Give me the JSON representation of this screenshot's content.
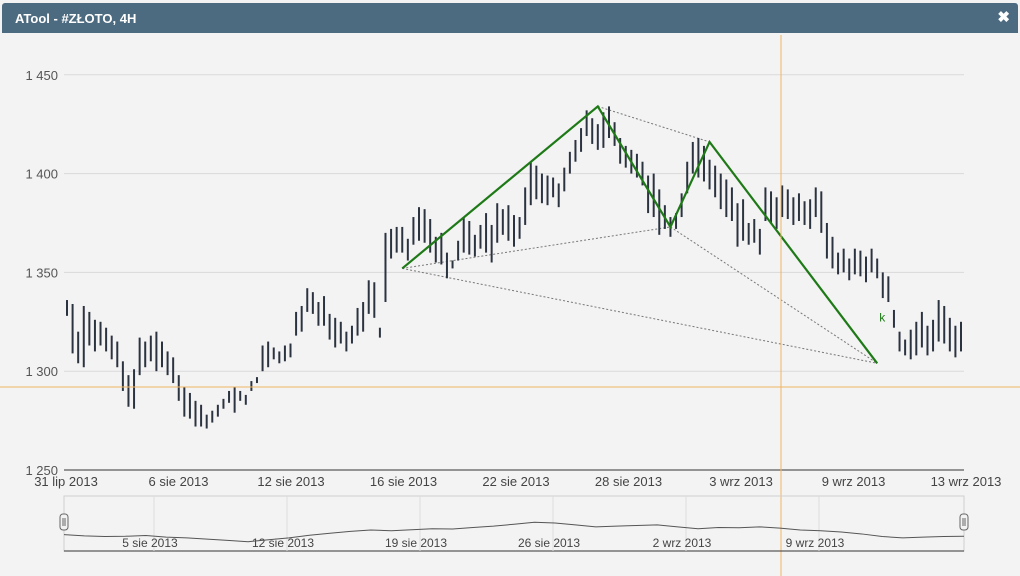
{
  "window": {
    "title": "ATool - #ZŁOTO, 4H",
    "close_icon": "close-icon"
  },
  "colors": {
    "titlebar": "#4d6b80",
    "candle": "#2b3340",
    "pattern": "#1e7a16",
    "crosshair": "#f0b560",
    "dotted": "#777777",
    "grid": "#d9d9d9"
  },
  "chart_data": {
    "type": "bar",
    "title": "",
    "xlabel": "",
    "ylabel": "",
    "ylim": [
      1250,
      1460
    ],
    "yticks": [
      "1 450",
      "1 400",
      "1 350",
      "1 300",
      "1 250"
    ],
    "ytick_values": [
      1450,
      1400,
      1350,
      1300,
      1250
    ],
    "xticks": [
      "31 lip 2013",
      "6 sie 2013",
      "12 sie 2013",
      "16 sie 2013",
      "22 sie 2013",
      "28 sie 2013",
      "3 wrz 2013",
      "9 wrz 2013",
      "13 wrz 2013"
    ],
    "ohlc_highs": [
      1336,
      1334,
      1320,
      1333,
      1330,
      1326,
      1325,
      1322,
      1318,
      1315,
      1305,
      1298,
      1301,
      1317,
      1315,
      1318,
      1320,
      1315,
      1310,
      1307,
      1298,
      1292,
      1289,
      1285,
      1283,
      1278,
      1280,
      1283,
      1286,
      1290,
      1292,
      1290,
      1288,
      1295,
      1297,
      1313,
      1315,
      1312,
      1310,
      1313,
      1314,
      1330,
      1333,
      1342,
      1340,
      1335,
      1338,
      1329,
      1327,
      1325,
      1320,
      1323,
      1332,
      1335,
      1346,
      1345,
      1322,
      1370,
      1372,
      1373,
      1373,
      1367,
      1378,
      1383,
      1382,
      1377,
      1368,
      1370,
      1360,
      1356,
      1366,
      1378,
      1376,
      1369,
      1374,
      1380,
      1374,
      1385,
      1382,
      1384,
      1379,
      1378,
      1393,
      1406,
      1404,
      1400,
      1399,
      1398,
      1395,
      1403,
      1411,
      1417,
      1423,
      1432,
      1428,
      1425,
      1431,
      1434,
      1426,
      1418,
      1414,
      1412,
      1410,
      1406,
      1399,
      1400,
      1392,
      1384,
      1378,
      1380,
      1390,
      1406,
      1416,
      1418,
      1414,
      1407,
      1404,
      1400,
      1397,
      1393,
      1385,
      1387,
      1375,
      1377,
      1372,
      1393,
      1391,
      1388,
      1394,
      1392,
      1388,
      1390,
      1386,
      1387,
      1393,
      1391,
      1375,
      1368,
      1360,
      1362,
      1357,
      1362,
      1361,
      1358,
      1362,
      1357,
      1350,
      1348,
      1331,
      1320,
      1316,
      1321,
      1325,
      1330,
      1323,
      1326,
      1336,
      1333,
      1327,
      1323,
      1325
    ],
    "ohlc_lows": [
      1328,
      1309,
      1304,
      1302,
      1313,
      1310,
      1313,
      1310,
      1306,
      1302,
      1290,
      1282,
      1281,
      1298,
      1302,
      1305,
      1300,
      1302,
      1298,
      1294,
      1285,
      1277,
      1276,
      1272,
      1272,
      1271,
      1274,
      1277,
      1281,
      1284,
      1279,
      1285,
      1283,
      1290,
      1294,
      1300,
      1302,
      1306,
      1304,
      1305,
      1307,
      1318,
      1320,
      1330,
      1329,
      1323,
      1323,
      1316,
      1312,
      1314,
      1310,
      1314,
      1318,
      1320,
      1329,
      1327,
      1317,
      1335,
      1357,
      1360,
      1360,
      1356,
      1364,
      1366,
      1365,
      1360,
      1355,
      1354,
      1347,
      1352,
      1356,
      1360,
      1359,
      1358,
      1362,
      1360,
      1355,
      1365,
      1369,
      1366,
      1363,
      1367,
      1374,
      1384,
      1387,
      1385,
      1384,
      1388,
      1383,
      1391,
      1400,
      1406,
      1411,
      1419,
      1415,
      1412,
      1413,
      1418,
      1414,
      1405,
      1403,
      1400,
      1398,
      1394,
      1380,
      1378,
      1369,
      1372,
      1368,
      1372,
      1378,
      1390,
      1400,
      1398,
      1396,
      1392,
      1388,
      1382,
      1378,
      1376,
      1363,
      1366,
      1364,
      1365,
      1359,
      1376,
      1375,
      1372,
      1378,
      1377,
      1374,
      1376,
      1374,
      1372,
      1378,
      1370,
      1357,
      1352,
      1349,
      1350,
      1346,
      1349,
      1348,
      1345,
      1350,
      1347,
      1337,
      1335,
      1322,
      1310,
      1308,
      1306,
      1308,
      1312,
      1308,
      1310,
      1315,
      1314,
      1310,
      1307,
      1310
    ]
  },
  "pattern": {
    "points": [
      [
        0,
        1352
      ],
      [
        1,
        1434
      ],
      [
        2,
        1373
      ],
      [
        3,
        1416
      ],
      [
        4,
        1304
      ]
    ],
    "label": "k"
  },
  "crosshair": {
    "x_date": "7 wrz 2013",
    "y_value": 1292
  },
  "navigator": {
    "labels": [
      "5 sie 2013",
      "12 sie 2013",
      "19 sie 2013",
      "26 sie 2013",
      "2 wrz 2013",
      "9 wrz 2013"
    ],
    "series": [
      1335,
      1325,
      1320,
      1322,
      1328,
      1315,
      1310,
      1300,
      1290,
      1280,
      1295,
      1310,
      1330,
      1345,
      1360,
      1370,
      1365,
      1372,
      1380,
      1378,
      1390,
      1400,
      1415,
      1430,
      1425,
      1410,
      1395,
      1400,
      1405,
      1410,
      1395,
      1380,
      1390,
      1388,
      1395,
      1385,
      1370,
      1365,
      1355,
      1340,
      1320,
      1310,
      1315,
      1320,
      1322
    ]
  }
}
